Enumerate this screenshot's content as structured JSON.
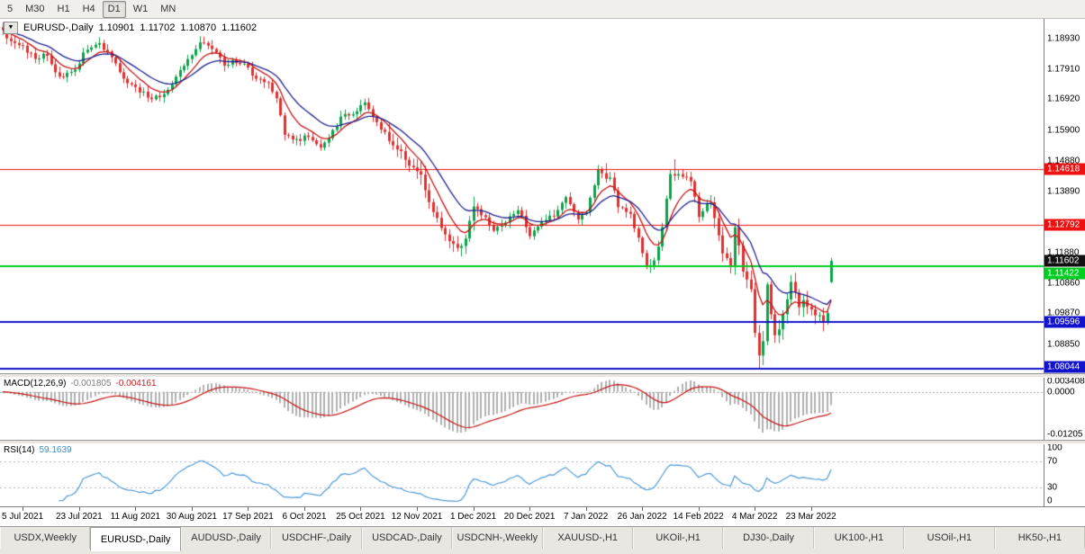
{
  "toolbar": {
    "timeframes": [
      "5",
      "M30",
      "H1",
      "H4",
      "D1",
      "W1",
      "MN"
    ],
    "active": "D1"
  },
  "chart_header": {
    "collapse_icon": "▼",
    "symbol_label": "EURUSD-,Daily",
    "open": "1.10901",
    "high": "1.11702",
    "low": "1.10870",
    "close": "1.11602"
  },
  "chart_data": {
    "type": "candlestick",
    "title": "EURUSD-,Daily",
    "n_candles": 207,
    "price_axis": {
      "min": 1.079,
      "max": 1.196,
      "ticks": [
        "1.18930",
        "1.17910",
        "1.16920",
        "1.15900",
        "1.14880",
        "1.13890",
        "1.11880",
        "1.10860",
        "1.09870",
        "1.08850"
      ]
    },
    "close_path_anchors": [
      [
        0,
        1.192
      ],
      [
        2,
        1.1878
      ],
      [
        5,
        1.1864
      ],
      [
        8,
        1.183
      ],
      [
        11,
        1.1837
      ],
      [
        13,
        1.1775
      ],
      [
        16,
        1.1772
      ],
      [
        18,
        1.1794
      ],
      [
        21,
        1.1862
      ],
      [
        24,
        1.187
      ],
      [
        27,
        1.1838
      ],
      [
        30,
        1.1761
      ],
      [
        33,
        1.173
      ],
      [
        36,
        1.1702
      ],
      [
        39,
        1.1697
      ],
      [
        41,
        1.1726
      ],
      [
        44,
        1.179
      ],
      [
        47,
        1.1842
      ],
      [
        49,
        1.188
      ],
      [
        52,
        1.186
      ],
      [
        55,
        1.181
      ],
      [
        57,
        1.1814
      ],
      [
        60,
        1.1805
      ],
      [
        63,
        1.176
      ],
      [
        66,
        1.174
      ],
      [
        68,
        1.1688
      ],
      [
        70,
        1.1579
      ],
      [
        73,
        1.156
      ],
      [
        76,
        1.157
      ],
      [
        79,
        1.153
      ],
      [
        82,
        1.159
      ],
      [
        84,
        1.1633
      ],
      [
        87,
        1.165
      ],
      [
        90,
        1.1682
      ],
      [
        93,
        1.161
      ],
      [
        96,
        1.156
      ],
      [
        99,
        1.152
      ],
      [
        101,
        1.1478
      ],
      [
        104,
        1.144
      ],
      [
        107,
        1.1319
      ],
      [
        110,
        1.125
      ],
      [
        113,
        1.1199
      ],
      [
        115,
        1.123
      ],
      [
        117,
        1.1339
      ],
      [
        119,
        1.1313
      ],
      [
        122,
        1.1262
      ],
      [
        125,
        1.129
      ],
      [
        128,
        1.133
      ],
      [
        131,
        1.1245
      ],
      [
        134,
        1.1288
      ],
      [
        137,
        1.131
      ],
      [
        140,
        1.137
      ],
      [
        143,
        1.13
      ],
      [
        145,
        1.132
      ],
      [
        148,
        1.1455
      ],
      [
        151,
        1.143
      ],
      [
        153,
        1.134
      ],
      [
        156,
        1.131
      ],
      [
        158,
        1.124
      ],
      [
        160,
        1.1145
      ],
      [
        162,
        1.116
      ],
      [
        164,
        1.127
      ],
      [
        166,
        1.145
      ],
      [
        169,
        1.144
      ],
      [
        171,
        1.1425
      ],
      [
        173,
        1.1305
      ],
      [
        176,
        1.136
      ],
      [
        179,
        1.119
      ],
      [
        181,
        1.115
      ],
      [
        182,
        1.127
      ],
      [
        183,
        1.1216
      ],
      [
        184,
        1.1118
      ],
      [
        186,
        1.1067
      ],
      [
        187,
        1.0926
      ],
      [
        188,
        1.0854
      ],
      [
        189,
        1.0901
      ],
      [
        190,
        1.1075
      ],
      [
        191,
        1.0985
      ],
      [
        192,
        1.0911
      ],
      [
        193,
        1.094
      ],
      [
        195,
        1.1035
      ],
      [
        196,
        1.109
      ],
      [
        197,
        1.1051
      ],
      [
        198,
        1.1015
      ],
      [
        199,
        1.1028
      ],
      [
        200,
        1.1003
      ],
      [
        201,
        1.0997
      ],
      [
        202,
        1.0983
      ],
      [
        203,
        1.0975
      ],
      [
        204,
        1.0958
      ],
      [
        205,
        1.099
      ],
      [
        206,
        1.116
      ]
    ],
    "forced_extremes": [
      {
        "index": 24,
        "high": 1.1897
      },
      {
        "index": 49,
        "high": 1.19
      },
      {
        "index": 150,
        "high": 1.1482
      },
      {
        "index": 167,
        "high": 1.1495
      },
      {
        "index": 161,
        "low": 1.112
      },
      {
        "index": 188,
        "low": 1.0806
      },
      {
        "index": 204,
        "low": 1.0944
      }
    ],
    "last_candle": {
      "open": 1.10901,
      "high": 1.11702,
      "low": 1.1087,
      "close": 1.11602
    },
    "moving_averages": [
      {
        "period": 8,
        "color": "#c41414"
      },
      {
        "period": 17,
        "color": "#23238f"
      }
    ],
    "levels": [
      {
        "price": 1.14618,
        "label": "1.14618",
        "color": "#ee1111",
        "width": 1
      },
      {
        "price": 1.12792,
        "label": "1.12792",
        "color": "#ee1111",
        "width": 1
      },
      {
        "price": 1.11422,
        "label": "1.11422",
        "color": "#00cc22",
        "width": 2
      },
      {
        "price": 1.09596,
        "label": "1.09596",
        "color": "#1313cc",
        "width": 2
      },
      {
        "price": 1.08044,
        "label": "1.08044",
        "color": "#1313cc",
        "width": 2
      }
    ],
    "current_price": {
      "value": 1.11602,
      "label": "1.11602",
      "badge_color": "#111111"
    },
    "time_labels": [
      "5 Jul 2021",
      "23 Jul 2021",
      "11 Aug 2021",
      "30 Aug 2021",
      "17 Sep 2021",
      "6 Oct 2021",
      "25 Oct 2021",
      "12 Nov 2021",
      "1 Dec 2021",
      "20 Dec 2021",
      "7 Jan 2022",
      "26 Jan 2022",
      "14 Feb 2022",
      "4 Mar 2022",
      "23 Mar 2022"
    ],
    "x_label_start_index": 5,
    "x_label_every": 14,
    "indicators": {
      "macd": {
        "name": "MACD(12,26,9)",
        "values": [
          "-0.001805",
          "-0.004161"
        ],
        "axis_ticks": [
          "0.003408",
          "0.0000",
          "-0.01205"
        ],
        "scale": {
          "min": -0.01205,
          "max": 0.004
        },
        "histogram_color": "#b0b0b0",
        "signal_color": "#c41414"
      },
      "rsi": {
        "name": "RSI(14)",
        "value": "59.1639",
        "period": 14,
        "axis_ticks": [
          "100",
          "70",
          "30",
          "0"
        ],
        "levels": [
          70,
          30
        ],
        "line_color": "#4f9ad8",
        "level_line_color": "#b3b3d9"
      }
    }
  },
  "tabs": {
    "items": [
      "USDX,Weekly",
      "EURUSD-,Daily",
      "AUDUSD-,Daily",
      "USDCHF-,Daily",
      "USDCAD-,Daily",
      "USDCNH-,Weekly",
      "XAUUSD-,H1",
      "UKOil-,H1",
      "DJ30-,Daily",
      "UK100-,H1",
      "USOil-,H1",
      "HK50-,H1"
    ],
    "active": "EURUSD-,Daily"
  },
  "colors": {
    "up": "#0ca24a",
    "down": "#e03030",
    "background": "#ffffff",
    "chrome": "#f0efec"
  }
}
